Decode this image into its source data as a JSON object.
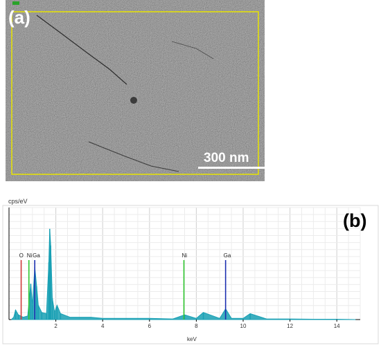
{
  "panel_a": {
    "label": "(a)",
    "scale_bar_label": "300 nm",
    "roi_color": "#e8e400"
  },
  "chart_data": {
    "type": "line",
    "panel_label": "(b)",
    "ylabel": "cps/eV",
    "xlabel": "keV",
    "xlim": [
      0,
      15
    ],
    "x_ticks": [
      2,
      4,
      6,
      8,
      10,
      12,
      14
    ],
    "grid": true,
    "series": [
      {
        "color": "#19a0b4",
        "x": [
          0.1,
          0.2,
          0.28,
          0.4,
          0.6,
          0.8,
          0.93,
          1.0,
          1.1,
          1.18,
          1.25,
          1.4,
          1.6,
          1.7,
          1.74,
          1.78,
          1.85,
          1.95,
          2.05,
          2.2,
          2.6,
          3.0,
          3.5,
          4.0,
          5.0,
          6.0,
          7.0,
          7.5,
          8.0,
          8.3,
          9.0,
          9.25,
          9.5,
          10.0,
          10.3,
          11.0,
          12.0,
          13.0,
          14.0,
          14.8
        ],
        "y": [
          0,
          2,
          8,
          4,
          2,
          3,
          30,
          12,
          44,
          28,
          12,
          6,
          5,
          48,
          76,
          62,
          18,
          6,
          12,
          5,
          2,
          2,
          2,
          1,
          1,
          1,
          0.5,
          4,
          1,
          6,
          1,
          9,
          1,
          1,
          5,
          0.5,
          0.5,
          0.3,
          0.3,
          0
        ]
      }
    ],
    "peak_markers": [
      {
        "label": "O",
        "x": 0.52,
        "color": "#d03c3c"
      },
      {
        "label": "Ni",
        "x": 0.85,
        "color": "#2ec62e"
      },
      {
        "label": "Ga",
        "x": 1.1,
        "color": "#1c2fb0"
      },
      {
        "label": "Ni",
        "x": 7.47,
        "color": "#2ec62e"
      },
      {
        "label": "Ga",
        "x": 9.25,
        "color": "#1c2fb0"
      }
    ]
  }
}
